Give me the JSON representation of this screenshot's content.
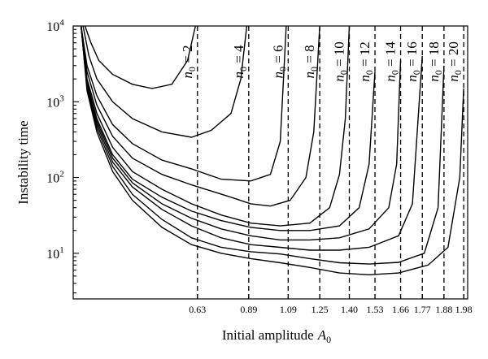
{
  "chart_data": {
    "type": "line",
    "title": "",
    "xlabel": "Initial amplitude",
    "xlabel_symbol": "A",
    "xlabel_subscript": "0",
    "ylabel": "Instability time",
    "yscale": "log",
    "xlim": [
      0,
      2.0
    ],
    "ylim": [
      2.5,
      10000
    ],
    "grid": false,
    "legend": "none",
    "y_ticks": [
      {
        "value": 10,
        "base": "10",
        "exp": "1"
      },
      {
        "value": 100,
        "base": "10",
        "exp": "2"
      },
      {
        "value": 1000,
        "base": "10",
        "exp": "3"
      },
      {
        "value": 10000,
        "base": "10",
        "exp": "4"
      }
    ],
    "dashed_thresholds": [
      {
        "x": 0.63,
        "label": "0.63",
        "n0": "2"
      },
      {
        "x": 0.89,
        "label": "0.89",
        "n0": "4"
      },
      {
        "x": 1.09,
        "label": "1.09",
        "n0": "6"
      },
      {
        "x": 1.25,
        "label": "1.25",
        "n0": "8"
      },
      {
        "x": 1.4,
        "label": "1.40",
        "n0": "10"
      },
      {
        "x": 1.53,
        "label": "1.53",
        "n0": "12"
      },
      {
        "x": 1.66,
        "label": "1.66",
        "n0": "14"
      },
      {
        "x": 1.77,
        "label": "1.77",
        "n0": "16"
      },
      {
        "x": 1.88,
        "label": "1.88",
        "n0": "18"
      },
      {
        "x": 1.98,
        "label": "1.98",
        "n0": "20"
      }
    ],
    "curve_label_prefix": "n",
    "curve_label_subscript": "0",
    "series": [
      {
        "label": "2",
        "x": [
          0.06,
          0.09,
          0.13,
          0.2,
          0.3,
          0.4,
          0.5,
          0.58,
          0.62
        ],
        "y": [
          10000,
          6000,
          3500,
          2300,
          1700,
          1500,
          1700,
          3500,
          10000
        ]
      },
      {
        "label": "4",
        "x": [
          0.05,
          0.08,
          0.12,
          0.2,
          0.3,
          0.45,
          0.6,
          0.7,
          0.8,
          0.85,
          0.88
        ],
        "y": [
          10000,
          4000,
          2000,
          1000,
          600,
          400,
          340,
          420,
          700,
          2000,
          10000
        ]
      },
      {
        "label": "6",
        "x": [
          0.04,
          0.07,
          0.12,
          0.2,
          0.3,
          0.45,
          0.6,
          0.75,
          0.9,
          1.0,
          1.05,
          1.08
        ],
        "y": [
          10000,
          3000,
          1200,
          500,
          280,
          170,
          130,
          95,
          90,
          110,
          300,
          10000
        ]
      },
      {
        "label": "8",
        "x": [
          0.04,
          0.07,
          0.12,
          0.2,
          0.3,
          0.45,
          0.6,
          0.8,
          0.9,
          1.0,
          1.1,
          1.18,
          1.22,
          1.25
        ],
        "y": [
          10000,
          2500,
          900,
          350,
          180,
          110,
          80,
          55,
          45,
          42,
          50,
          100,
          400,
          10000
        ]
      },
      {
        "label": "10",
        "x": [
          0.04,
          0.07,
          0.12,
          0.2,
          0.3,
          0.45,
          0.6,
          0.75,
          0.9,
          1.05,
          1.2,
          1.3,
          1.35,
          1.38,
          1.4
        ],
        "y": [
          10000,
          2000,
          700,
          250,
          120,
          70,
          45,
          32,
          25,
          23,
          25,
          40,
          110,
          600,
          10000
        ]
      },
      {
        "label": "12",
        "x": [
          0.04,
          0.07,
          0.12,
          0.2,
          0.3,
          0.45,
          0.6,
          0.75,
          0.9,
          1.05,
          1.2,
          1.35,
          1.45,
          1.5,
          1.53
        ],
        "y": [
          10000,
          1800,
          600,
          200,
          95,
          55,
          36,
          27,
          22,
          20,
          20,
          23,
          40,
          150,
          2500
        ]
      },
      {
        "label": "14",
        "x": [
          0.04,
          0.07,
          0.12,
          0.2,
          0.3,
          0.45,
          0.6,
          0.75,
          0.9,
          1.05,
          1.2,
          1.35,
          1.5,
          1.6,
          1.64,
          1.66
        ],
        "y": [
          10000,
          1700,
          550,
          180,
          85,
          45,
          29,
          21,
          17,
          15,
          15,
          16,
          21,
          40,
          150,
          3500
        ]
      },
      {
        "label": "16",
        "x": [
          0.04,
          0.07,
          0.12,
          0.2,
          0.3,
          0.45,
          0.6,
          0.75,
          0.9,
          1.05,
          1.2,
          1.35,
          1.5,
          1.65,
          1.72,
          1.77
        ],
        "y": [
          10000,
          1600,
          500,
          160,
          75,
          38,
          23,
          16,
          13,
          12,
          11,
          11,
          12,
          17,
          45,
          4000
        ]
      },
      {
        "label": "18",
        "x": [
          0.04,
          0.07,
          0.12,
          0.2,
          0.3,
          0.45,
          0.6,
          0.75,
          0.9,
          1.05,
          1.2,
          1.35,
          1.5,
          1.65,
          1.78,
          1.85,
          1.88
        ],
        "y": [
          10000,
          1500,
          450,
          140,
          60,
          28,
          16,
          12,
          10.5,
          9.8,
          8.5,
          7.5,
          7.2,
          7.6,
          10,
          40,
          3000
        ]
      },
      {
        "label": "20",
        "x": [
          0.04,
          0.07,
          0.12,
          0.2,
          0.3,
          0.45,
          0.6,
          0.75,
          0.9,
          1.05,
          1.2,
          1.35,
          1.5,
          1.65,
          1.8,
          1.9,
          1.96,
          1.98
        ],
        "y": [
          10000,
          1400,
          400,
          120,
          50,
          22,
          13,
          10,
          8.5,
          7.5,
          6.5,
          5.5,
          5.2,
          5.5,
          7,
          12,
          100,
          1500
        ]
      }
    ]
  }
}
